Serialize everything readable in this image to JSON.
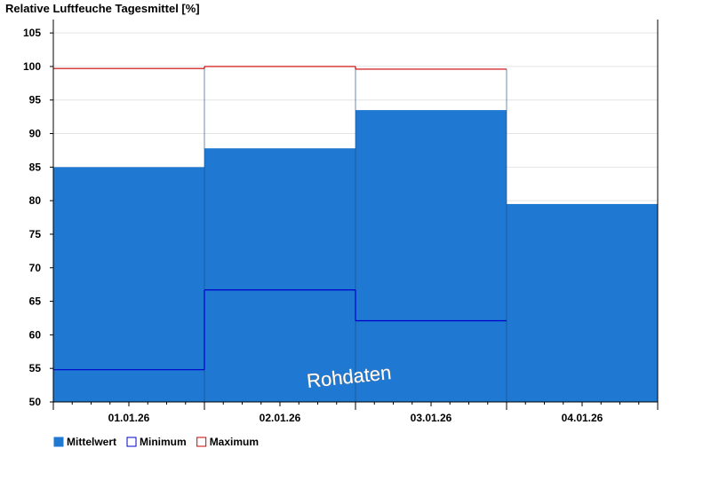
{
  "chart_data": {
    "type": "bar",
    "title": "Relative Luftfeuche Tagesmittel [%]",
    "categories": [
      "01.01.26",
      "02.01.26",
      "03.01.26",
      "04.01.26"
    ],
    "ylim": [
      50,
      107
    ],
    "yticks": [
      50,
      55,
      60,
      65,
      70,
      75,
      80,
      85,
      90,
      95,
      100,
      105
    ],
    "grid": true,
    "legend_position": "bottom-left",
    "series": [
      {
        "name": "Mittelwert",
        "values": [
          85.0,
          87.8,
          93.5,
          79.5
        ],
        "color": "#1f78d1"
      },
      {
        "name": "Minimum",
        "values": [
          54.8,
          66.7,
          62.1,
          null
        ],
        "color": "#0000cc"
      },
      {
        "name": "Maximum",
        "values": [
          99.7,
          100.0,
          99.6,
          null
        ],
        "color": "#cc0000"
      }
    ],
    "watermark": "Rohdaten"
  }
}
